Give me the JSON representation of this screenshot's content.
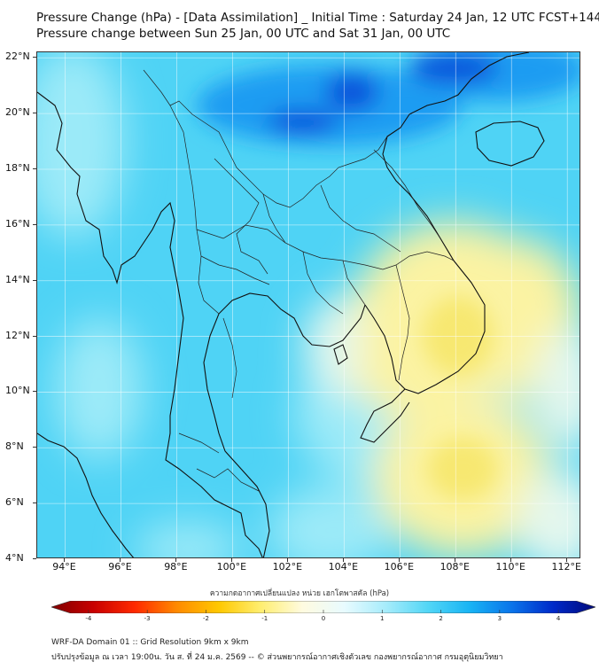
{
  "header": {
    "title_line1": "Pressure Change (hPa) - [Data Assimilation] _ Initial Time : Saturday 24 Jan, 12 UTC FCST+144",
    "title_line2": "Pressure change between Sun 25 Jan, 00 UTC and Sat 31 Jan, 00 UTC"
  },
  "map": {
    "lat_ticks": [
      "22°N",
      "20°N",
      "18°N",
      "16°N",
      "14°N",
      "12°N",
      "10°N",
      "8°N",
      "6°N",
      "4°N"
    ],
    "lon_ticks": [
      "94°E",
      "96°E",
      "98°E",
      "100°E",
      "102°E",
      "104°E",
      "106°E",
      "108°E",
      "110°E",
      "112°E"
    ],
    "lat_range": [
      4,
      22.2
    ],
    "lon_range": [
      93,
      112.5
    ],
    "gridlines": true,
    "field_colors": {
      "base": "#4fd3f5",
      "light_cyan": "#9beaf8",
      "pale": "#e4f7ee",
      "yellow": "#fbf3a3",
      "yellow_strong": "#f7e871",
      "blue": "#1a9cf2",
      "dark_blue": "#0a55dc"
    },
    "coast_color": "#111111",
    "border_color": "#222222"
  },
  "colorbar": {
    "title": "ความกดอากาศเปลี่ยนแปลง หน่วย เฮกโตพาสคัล (hPa)",
    "ticks": [
      "-4",
      "-3",
      "-2",
      "-1",
      "0",
      "1",
      "2",
      "3",
      "4"
    ],
    "range": [
      -4.3,
      4.3
    ],
    "colors": [
      "#7f0000",
      "#c80000",
      "#ff2a00",
      "#ff8a00",
      "#ffc800",
      "#ffee70",
      "#fffbe0",
      "#e8fbff",
      "#a6ecfb",
      "#52d6f6",
      "#18b4f4",
      "#0a74ea",
      "#0029c8",
      "#000a7a"
    ]
  },
  "footer": {
    "line1": "WRF-DA Domain 01 :: Grid Resolution 9km x 9km",
    "line2": "ปรับปรุงข้อมูล ณ เวลา 19:00น. วัน ส. ที่ 24 ม.ค. 2569 -- © ส่วนพยากรณ์อากาศเชิงตัวเลข กองพยากรณ์อากาศ กรมอุตุนิยมวิทยา"
  }
}
